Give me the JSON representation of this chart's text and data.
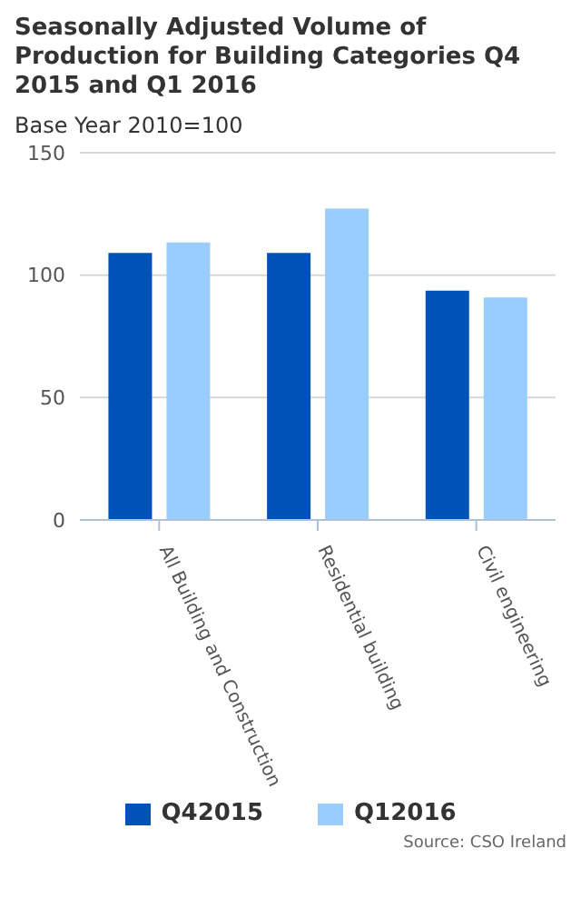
{
  "chart_data": {
    "type": "bar",
    "title": "Seasonally Adjusted Volume of Production for Building Categories Q4 2015 and Q1 2016",
    "subtitle": "Base Year 2010=100",
    "categories": [
      "All Building and Construction",
      "Residential building",
      "Civil engineering"
    ],
    "series": [
      {
        "name": "Q42015",
        "color": "#0052b9",
        "values": [
          109.1,
          109.1,
          93.7
        ]
      },
      {
        "name": "Q12016",
        "color": "#99ccff",
        "values": [
          113.3,
          127.2,
          90.9
        ]
      }
    ],
    "ylim": [
      0,
      150
    ],
    "yticks": [
      0,
      50,
      100,
      150
    ],
    "grid": "y",
    "legend": "bottom",
    "annotations": [
      "Source: CSO Ireland"
    ]
  }
}
